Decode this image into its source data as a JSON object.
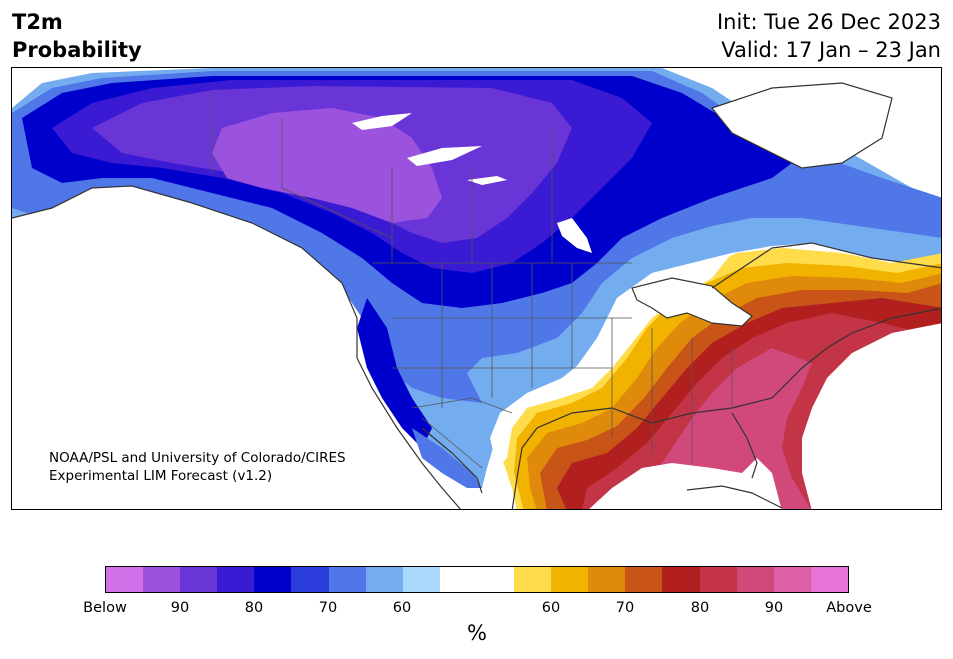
{
  "header": {
    "title_line1": "T2m",
    "title_line2": "Probability",
    "init": "Init: Tue 26 Dec 2023",
    "valid": "Valid: 17 Jan – 23 Jan"
  },
  "credit": {
    "line1": "NOAA/PSL and University of Colorado/CIRES",
    "line2": "Experimental LIM Forecast (v1.2)"
  },
  "colorbar": {
    "unit_label": "%",
    "colors": [
      "#d371e8",
      "#9b53de",
      "#6a35d6",
      "#3a1ad3",
      "#0000cc",
      "#2a3ddb",
      "#4f77e8",
      "#74acf0",
      "#abd9fb",
      "#ffffff",
      "#ffffff",
      "#fedc4a",
      "#f1b200",
      "#e08a0c",
      "#c85418",
      "#b1201f",
      "#c23446",
      "#d0497a",
      "#dc5fa8",
      "#e674d8"
    ],
    "ticks": [
      "Below",
      "90",
      "80",
      "70",
      "60",
      "60",
      "70",
      "80",
      "90",
      "Above"
    ]
  },
  "legend_colors": {
    "below_strong": "#9b53de",
    "below": "#0000cc",
    "neutral": "#ffffff",
    "above": "#c23446",
    "above_strong": "#d0497a"
  }
}
